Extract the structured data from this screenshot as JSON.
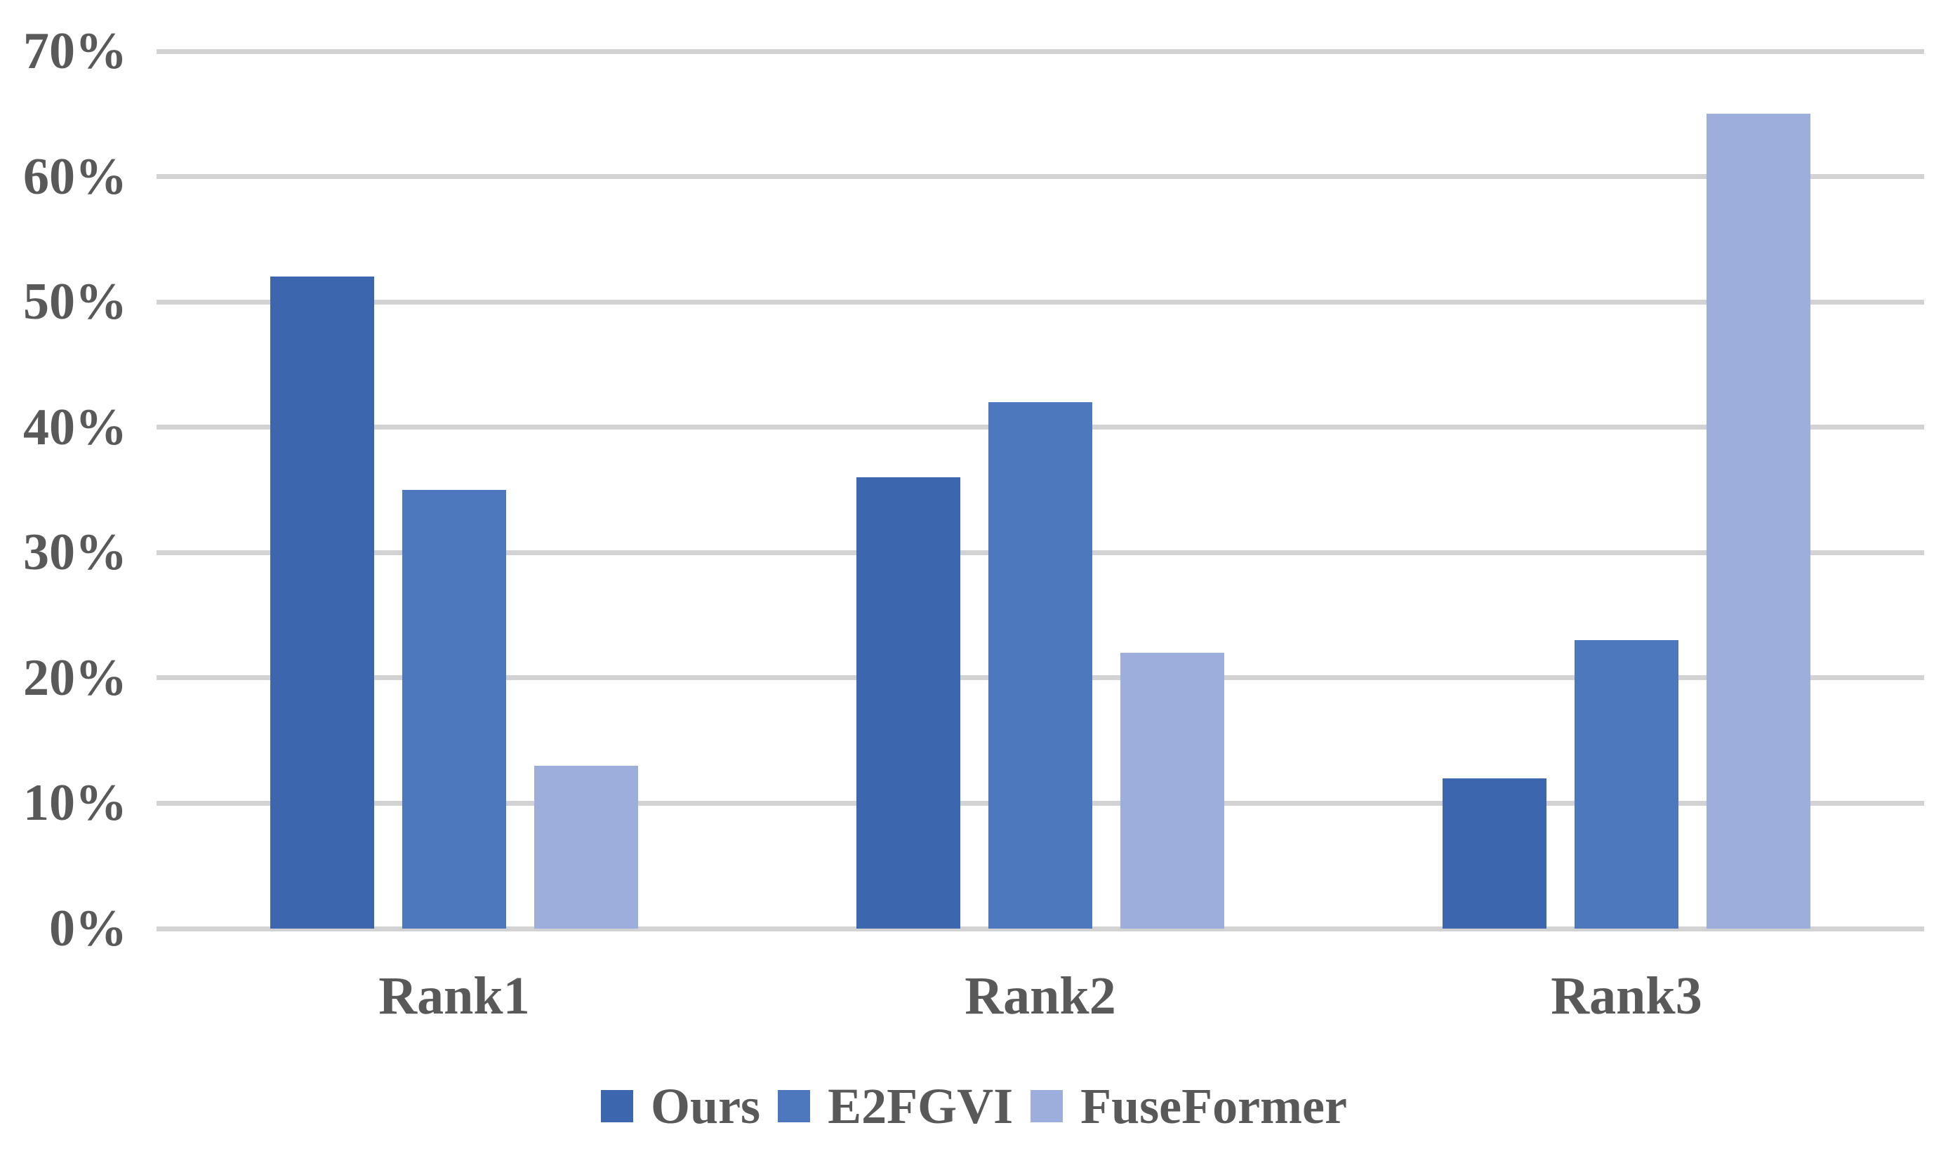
{
  "chart_data": {
    "type": "bar",
    "title": "",
    "categories": [
      "Rank1",
      "Rank2",
      "Rank3"
    ],
    "series": [
      {
        "name": "Ours",
        "color": "#3C67AE",
        "values": [
          52,
          36,
          12
        ]
      },
      {
        "name": "E2FGVI",
        "color": "#4D78BE",
        "values": [
          35,
          42,
          23
        ]
      },
      {
        "name": "FuseFormer",
        "color": "#9DAEDC",
        "values": [
          13,
          22,
          65
        ]
      }
    ],
    "y_axis": {
      "min": 0,
      "max": 70,
      "tick_step": 10,
      "tick_labels": [
        "0%",
        "10%",
        "20%",
        "30%",
        "40%",
        "50%",
        "60%",
        "70%"
      ],
      "unit": "%"
    },
    "grid": true,
    "legend_position": "bottom",
    "legend_labels": [
      "Ours",
      "E2FGVI",
      "FuseFormer"
    ],
    "colors": {
      "axis_text": "#595959",
      "gridline": "#D2D2D2",
      "background": "#FFFFFF"
    }
  }
}
